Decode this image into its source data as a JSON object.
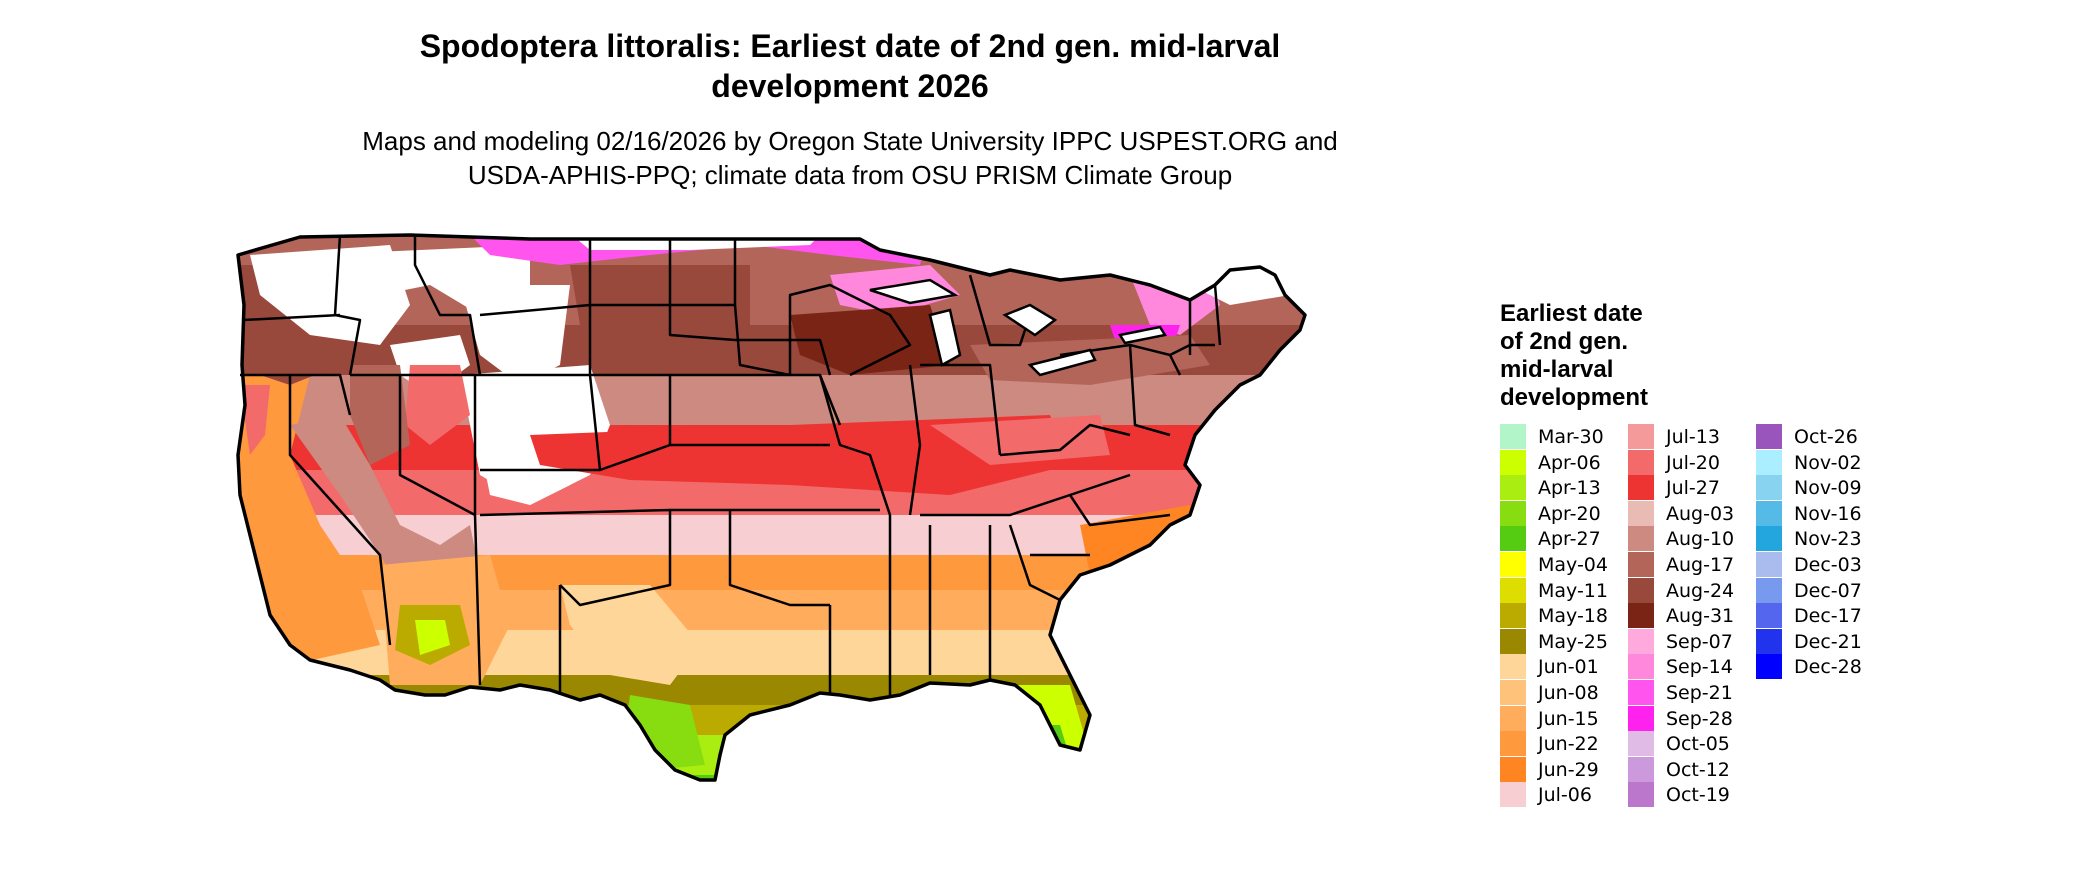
{
  "title": {
    "line1": "Spodoptera littoralis: Earliest date of 2nd gen. mid-larval",
    "line2": "development 2026"
  },
  "subtitle": {
    "line1": "Maps and modeling 02/16/2026 by Oregon State University IPPC USPEST.ORG and",
    "line2": "USDA-APHIS-PPQ; climate data from OSU PRISM Climate Group"
  },
  "legend": {
    "title": "Earliest date\nof 2nd gen.\nmid-larval\ndevelopment",
    "entries": [
      {
        "label": "Mar-30",
        "color": "#b2f5c9"
      },
      {
        "label": "Apr-06",
        "color": "#ccff00"
      },
      {
        "label": "Apr-13",
        "color": "#aaee11"
      },
      {
        "label": "Apr-20",
        "color": "#88dd11"
      },
      {
        "label": "Apr-27",
        "color": "#55cc11"
      },
      {
        "label": "May-04",
        "color": "#ffff00"
      },
      {
        "label": "May-11",
        "color": "#dddd00"
      },
      {
        "label": "May-18",
        "color": "#bbaa00"
      },
      {
        "label": "May-25",
        "color": "#998800"
      },
      {
        "label": "Jun-01",
        "color": "#ffd699"
      },
      {
        "label": "Jun-08",
        "color": "#ffc27a"
      },
      {
        "label": "Jun-15",
        "color": "#ffad5c"
      },
      {
        "label": "Jun-22",
        "color": "#ff993d"
      },
      {
        "label": "Jun-29",
        "color": "#ff8522"
      },
      {
        "label": "Jul-06",
        "color": "#f7cfd2"
      },
      {
        "label": "Jul-13",
        "color": "#f59a9a"
      },
      {
        "label": "Jul-20",
        "color": "#f26a6a"
      },
      {
        "label": "Jul-27",
        "color": "#ee3333"
      },
      {
        "label": "Aug-03",
        "color": "#e8bcb5"
      },
      {
        "label": "Aug-10",
        "color": "#cc8a80"
      },
      {
        "label": "Aug-17",
        "color": "#b36559"
      },
      {
        "label": "Aug-24",
        "color": "#99483c"
      },
      {
        "label": "Aug-31",
        "color": "#7a2415"
      },
      {
        "label": "Sep-07",
        "color": "#ffaadd"
      },
      {
        "label": "Sep-14",
        "color": "#ff88dd"
      },
      {
        "label": "Sep-21",
        "color": "#ff55ee"
      },
      {
        "label": "Sep-28",
        "color": "#ff22ee"
      },
      {
        "label": "Oct-05",
        "color": "#e0bbe6"
      },
      {
        "label": "Oct-12",
        "color": "#cc99dd"
      },
      {
        "label": "Oct-19",
        "color": "#bb77cc"
      },
      {
        "label": "Oct-26",
        "color": "#9955bb"
      },
      {
        "label": "Nov-02",
        "color": "#aaeeff"
      },
      {
        "label": "Nov-09",
        "color": "#88d4f0"
      },
      {
        "label": "Nov-16",
        "color": "#55bbe6"
      },
      {
        "label": "Nov-23",
        "color": "#22a6dd"
      },
      {
        "label": "Dec-03",
        "color": "#aabbee"
      },
      {
        "label": "Dec-07",
        "color": "#7799ee"
      },
      {
        "label": "Dec-17",
        "color": "#5566ee"
      },
      {
        "label": "Dec-21",
        "color": "#2233ee"
      },
      {
        "label": "Dec-28",
        "color": "#0000ff"
      }
    ]
  }
}
